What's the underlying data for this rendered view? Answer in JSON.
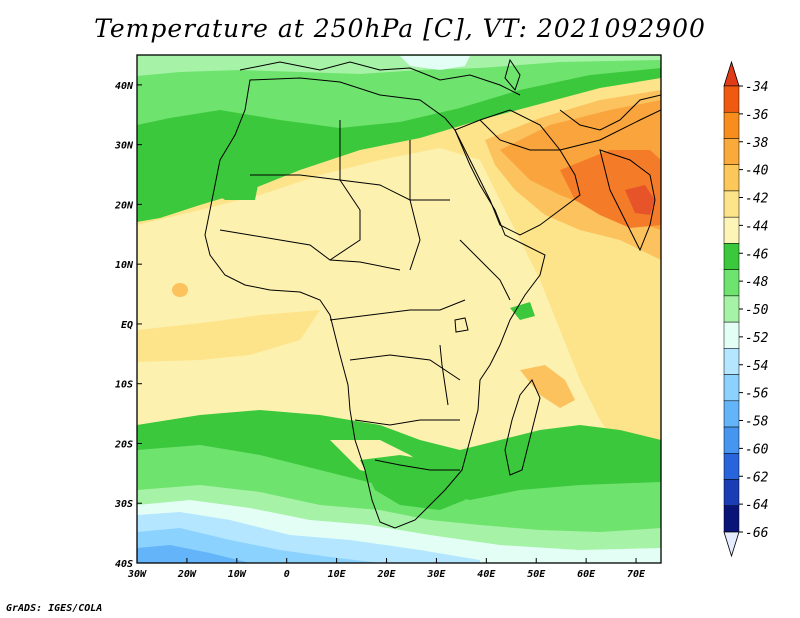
{
  "title": "Temperature at 250hPa [C], VT: 2021092900",
  "credit": "GrADS: IGES/COLA",
  "map": {
    "lon_labels": [
      "30W",
      "20W",
      "10W",
      "0",
      "10E",
      "20E",
      "30E",
      "40E",
      "50E",
      "60E",
      "70E"
    ],
    "lat_labels": [
      "40N",
      "30N",
      "20N",
      "10N",
      "EQ",
      "10S",
      "20S",
      "30S",
      "40S"
    ],
    "lon_range": [
      -30,
      75
    ],
    "lat_range": [
      -40,
      45
    ]
  },
  "colorbar": {
    "labels": [
      "-34",
      "-36",
      "-38",
      "-40",
      "-42",
      "-44",
      "-46",
      "-48",
      "-50",
      "-52",
      "-54",
      "-56",
      "-58",
      "-60",
      "-62",
      "-64",
      "-66"
    ],
    "colors": {
      "top_triangle": "#e03c18",
      "bands": [
        "#f05a10",
        "#f88c1c",
        "#faaa3a",
        "#fcc85a",
        "#fde48a",
        "#fdf5b8",
        "#3cc83c",
        "#6ee36e",
        "#a6f2a6",
        "#e3fff5",
        "#b4e6ff",
        "#8cd2ff",
        "#64b4fa",
        "#4696f0",
        "#2864dc",
        "#1a3cb4",
        "#0a1478"
      ],
      "bottom_triangle": "#e6ecff"
    }
  },
  "field_colors": {
    "c34": "#e8542a",
    "c36": "#f47c28",
    "c38": "#f9a43c",
    "c40": "#fcc25e",
    "c42": "#fde48a",
    "c44": "#fdf1b0",
    "c46": "#3cc83c",
    "c48": "#6ee36e",
    "c50": "#a6f2a6",
    "c52": "#e3fff5",
    "c54": "#b4e6ff",
    "c56": "#8cd2ff",
    "c58": "#64b4fa"
  }
}
